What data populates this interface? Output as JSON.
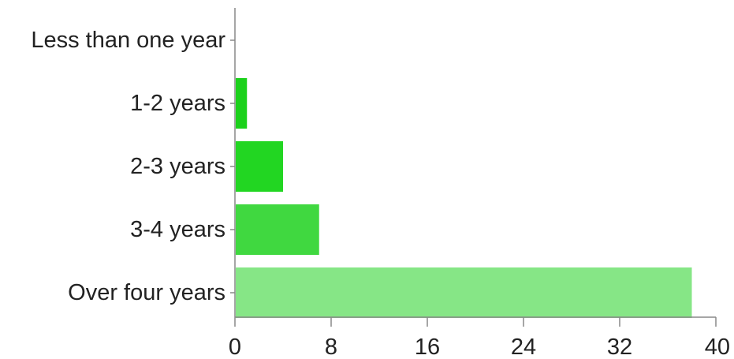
{
  "chart_data": {
    "type": "bar",
    "orientation": "horizontal",
    "categories": [
      "Less than one year",
      "1-2 years",
      "2-3 years",
      "3-4 years",
      "Over four years"
    ],
    "values": [
      0,
      1,
      4,
      7,
      38
    ],
    "bar_colors": [
      "#1bd11b",
      "#1bd11b",
      "#22d622",
      "#40d840",
      "#86e686"
    ],
    "xlim": [
      0,
      40
    ],
    "xticks": [
      "0",
      "8",
      "16",
      "24",
      "32",
      "40"
    ],
    "title": "",
    "xlabel": "",
    "ylabel": "",
    "grid": false,
    "legend": "none"
  }
}
